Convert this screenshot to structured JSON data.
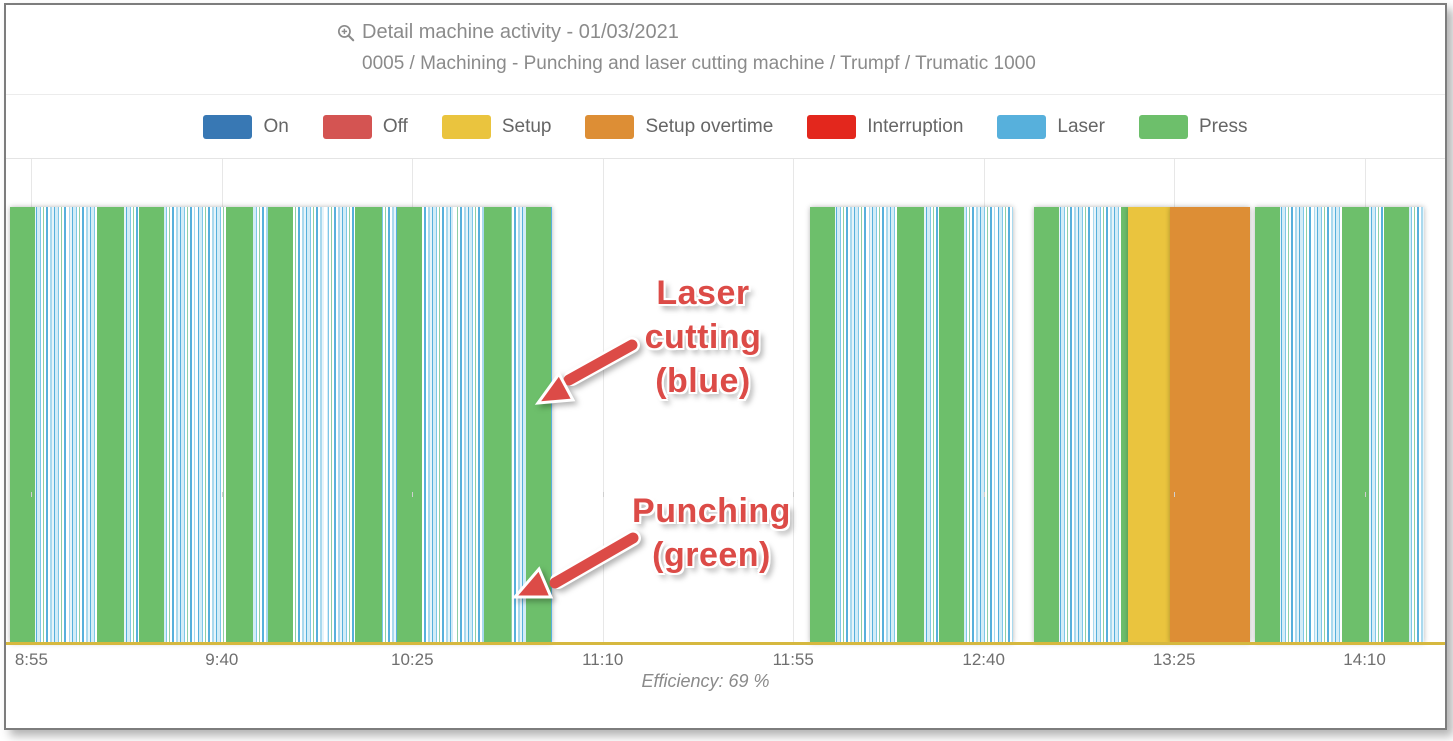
{
  "header": {
    "title": "Detail machine activity - 01/03/2021",
    "subtitle": "0005 / Machining - Punching and laser cutting machine / Trumpf / Trumatic 1000",
    "zoom_icon": "magnifier-plus-icon"
  },
  "legend": {
    "items": [
      {
        "label": "On",
        "color": "#3878b4"
      },
      {
        "label": "Off",
        "color": "#d45452"
      },
      {
        "label": "Setup",
        "color": "#eac43e"
      },
      {
        "label": "Setup overtime",
        "color": "#dd8e35"
      },
      {
        "label": "Interruption",
        "color": "#e3271d"
      },
      {
        "label": "Laser",
        "color": "#57b0dc"
      },
      {
        "label": "Press",
        "color": "#6dbf6b"
      }
    ]
  },
  "chart_data": {
    "type": "timeline",
    "title": "Detail machine activity - 01/03/2021",
    "machine": "0005 / Machining - Punching and laser cutting machine / Trumpf / Trumatic 1000",
    "x_axis": {
      "start": "8:49",
      "end": "14:29",
      "ticks": [
        "8:55",
        "9:40",
        "10:25",
        "11:10",
        "11:55",
        "12:40",
        "13:25",
        "14:10"
      ],
      "grid": true
    },
    "segments": [
      {
        "start": "8:50",
        "end": "10:58",
        "type": "press-laser",
        "label": "Press / Laser alternating"
      },
      {
        "start": "11:59",
        "end": "12:47",
        "type": "press-laser",
        "label": "Press / Laser alternating"
      },
      {
        "start": "12:52",
        "end": "13:14",
        "type": "press-laser",
        "label": "Press / Laser alternating"
      },
      {
        "start": "13:14",
        "end": "13:24",
        "type": "setup",
        "label": "Setup"
      },
      {
        "start": "13:24",
        "end": "13:43",
        "type": "setup-overtime",
        "label": "Setup overtime"
      },
      {
        "start": "13:44",
        "end": "14:24",
        "type": "press-laser",
        "label": "Press / Laser alternating"
      }
    ],
    "colors": {
      "press": "#6dbf6b",
      "laser": "#57b0dc",
      "setup": "#eac43e",
      "setup_overtime": "#dd8e35",
      "baseline": "#d6b83f",
      "gridline": "#e7e7e7"
    },
    "efficiency_label": "Efficiency: 69 %"
  },
  "annotations": {
    "color": "#dc4b47",
    "laser": {
      "lines": [
        "Laser",
        "cutting",
        "(blue)"
      ]
    },
    "punching": {
      "lines": [
        "Punching",
        "(green)"
      ]
    }
  }
}
